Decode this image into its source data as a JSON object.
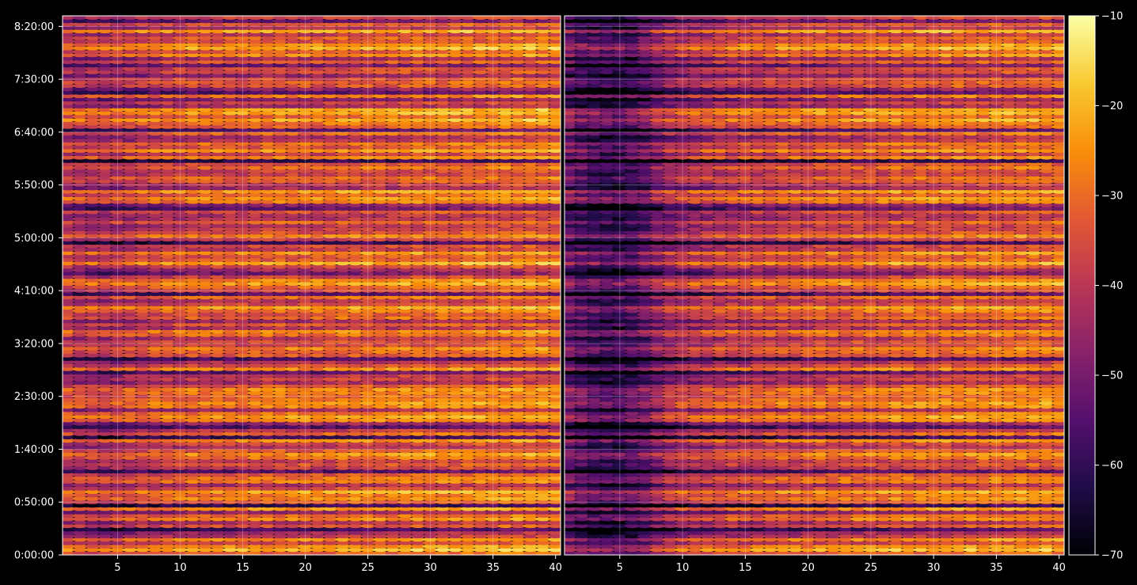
{
  "chart_data": {
    "type": "heatmap",
    "title": "",
    "xlabel": "",
    "ylabel": "",
    "colormap": "inferno",
    "background": "#000000",
    "grid": true,
    "panels": [
      {
        "name": "",
        "xlim": [
          1,
          40
        ],
        "x_ticks": [
          5,
          10,
          15,
          20,
          25,
          30,
          35,
          40
        ],
        "x_tick_labels": [
          "5",
          "10",
          "15",
          "20",
          "25",
          "30",
          "35",
          "40"
        ]
      },
      {
        "name": "",
        "xlim": [
          1,
          40
        ],
        "x_ticks": [
          5,
          10,
          15,
          20,
          25,
          30,
          35,
          40
        ],
        "x_tick_labels": [
          "5",
          "10",
          "15",
          "20",
          "25",
          "30",
          "35",
          "40"
        ]
      }
    ],
    "y_axis": {
      "units": "seconds",
      "ylim": [
        0,
        30600
      ],
      "ticks": [
        0,
        3000,
        6000,
        9000,
        12000,
        15000,
        18000,
        21000,
        24000,
        27000,
        30000
      ],
      "tick_labels": [
        "0:00:00",
        "0:50:00",
        "1:40:00",
        "2:30:00",
        "3:20:00",
        "4:10:00",
        "5:00:00",
        "5:50:00",
        "6:40:00",
        "7:30:00",
        "8:20:00"
      ]
    },
    "colorbar": {
      "range": [
        -70,
        -10
      ],
      "ticks": [
        -70,
        -60,
        -50,
        -40,
        -30,
        -20,
        -10
      ],
      "tick_labels": [
        "−70",
        "−60",
        "−50",
        "−40",
        "−30",
        "−20",
        "−10"
      ]
    },
    "row_levels": [
      -34,
      -22,
      -27,
      -38,
      -28,
      -42,
      -46,
      -60,
      -36,
      -44,
      -29,
      -33,
      -48,
      -27,
      -62,
      -35,
      -28,
      -31,
      -24,
      -38,
      -45,
      -30,
      -31,
      -36,
      -57,
      -41,
      -36,
      -40,
      -31,
      -27,
      -34,
      -44,
      -39,
      -28,
      -60,
      -33,
      -42,
      -58,
      -48,
      -28,
      -25,
      -31,
      -45,
      -29,
      -27,
      -31,
      -33,
      -30,
      -28,
      -35,
      -46,
      -40,
      -42,
      -56,
      -28,
      -37,
      -44,
      -59,
      -35,
      -33,
      -29,
      -38,
      -37,
      -43,
      -31,
      -28,
      -44,
      -35,
      -46,
      -33,
      -36,
      -30,
      -25,
      -38,
      -42,
      -32,
      -57,
      -38,
      -33,
      -25,
      -28,
      -39,
      -52,
      -46,
      -38,
      -24,
      -35,
      -36,
      -27,
      -41,
      -38,
      -61,
      -40,
      -29,
      -37,
      -40,
      -42,
      -33,
      -43,
      -44,
      -37,
      -55,
      -49,
      -30,
      -26,
      -34,
      -25,
      -46,
      -42,
      -35,
      -32,
      -40,
      -39,
      -32,
      -37,
      -63,
      -29,
      -40,
      -27,
      -36,
      -31,
      -43,
      -46,
      -33,
      -57,
      -35,
      -31,
      -24,
      -33,
      -24,
      -25,
      -46,
      -40,
      -50,
      -30,
      -57,
      -49,
      -36,
      -35,
      -37,
      -48,
      -38,
      -38,
      -53,
      -35,
      -46,
      -28,
      -35,
      -23,
      -27,
      -37,
      -34,
      -41,
      -24,
      -44,
      -36,
      -54,
      -39
    ],
    "column_gain": [
      [
        -3,
        -4,
        -4,
        -5,
        -4,
        -3,
        -2,
        -1,
        0,
        0,
        1,
        1,
        1,
        1,
        1,
        2,
        2,
        2,
        2,
        2,
        2,
        2,
        3,
        3,
        3,
        3,
        3,
        4,
        4,
        4,
        4,
        4,
        5,
        5,
        5,
        6,
        6,
        6,
        6,
        6
      ],
      [
        -16,
        -19,
        -21,
        -22,
        -22,
        -21,
        -17,
        -12,
        -8,
        -6,
        -5,
        -4,
        -3,
        -2,
        -2,
        -1,
        -1,
        0,
        0,
        0,
        1,
        1,
        1,
        2,
        2,
        2,
        3,
        3,
        3,
        3,
        4,
        4,
        4,
        4,
        5,
        5,
        5,
        5,
        5,
        5
      ]
    ]
  }
}
